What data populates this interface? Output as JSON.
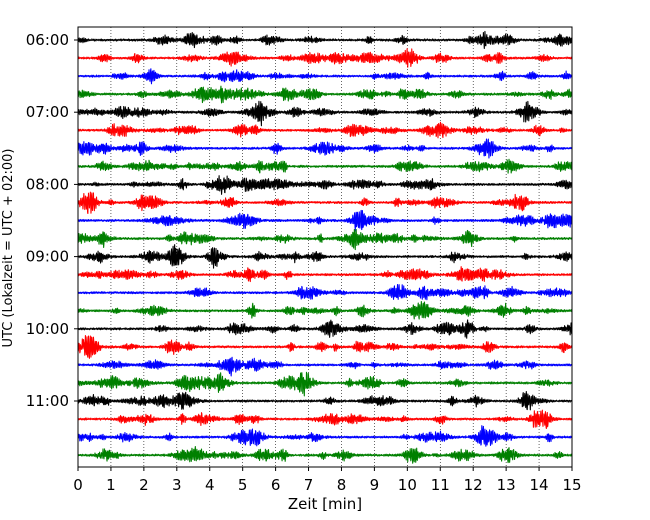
{
  "chart_data": {
    "type": "line",
    "title": "",
    "xlabel": "Zeit  [min]",
    "ylabel": "UTC (Lokalzeit = UTC + 02:00)",
    "xlim": [
      0,
      15
    ],
    "x_ticks": [
      "0",
      "1",
      "2",
      "3",
      "4",
      "5",
      "6",
      "7",
      "8",
      "9",
      "10",
      "11",
      "12",
      "13",
      "14",
      "15"
    ],
    "y_ticks": [
      "06:00",
      "07:00",
      "08:00",
      "09:00",
      "10:00",
      "11:00"
    ],
    "grid": "vertical dotted",
    "trace_interval_min": 15,
    "first_trace": "06:00",
    "last_trace": "11:45",
    "colors": [
      "#000000",
      "#ff0000",
      "#0000ff",
      "#008000"
    ],
    "series": [
      {
        "start": "06:00",
        "color": "#000000"
      },
      {
        "start": "06:15",
        "color": "#ff0000"
      },
      {
        "start": "06:30",
        "color": "#0000ff"
      },
      {
        "start": "06:45",
        "color": "#008000"
      },
      {
        "start": "07:00",
        "color": "#000000"
      },
      {
        "start": "07:15",
        "color": "#ff0000"
      },
      {
        "start": "07:30",
        "color": "#0000ff"
      },
      {
        "start": "07:45",
        "color": "#008000"
      },
      {
        "start": "08:00",
        "color": "#000000"
      },
      {
        "start": "08:15",
        "color": "#ff0000"
      },
      {
        "start": "08:30",
        "color": "#0000ff"
      },
      {
        "start": "08:45",
        "color": "#008000"
      },
      {
        "start": "09:00",
        "color": "#000000"
      },
      {
        "start": "09:15",
        "color": "#ff0000"
      },
      {
        "start": "09:30",
        "color": "#0000ff"
      },
      {
        "start": "09:45",
        "color": "#008000"
      },
      {
        "start": "10:00",
        "color": "#000000"
      },
      {
        "start": "10:15",
        "color": "#ff0000"
      },
      {
        "start": "10:30",
        "color": "#0000ff"
      },
      {
        "start": "10:45",
        "color": "#008000"
      },
      {
        "start": "11:00",
        "color": "#000000"
      },
      {
        "start": "11:15",
        "color": "#ff0000"
      },
      {
        "start": "11:30",
        "color": "#0000ff"
      },
      {
        "start": "11:45",
        "color": "#008000"
      }
    ]
  }
}
